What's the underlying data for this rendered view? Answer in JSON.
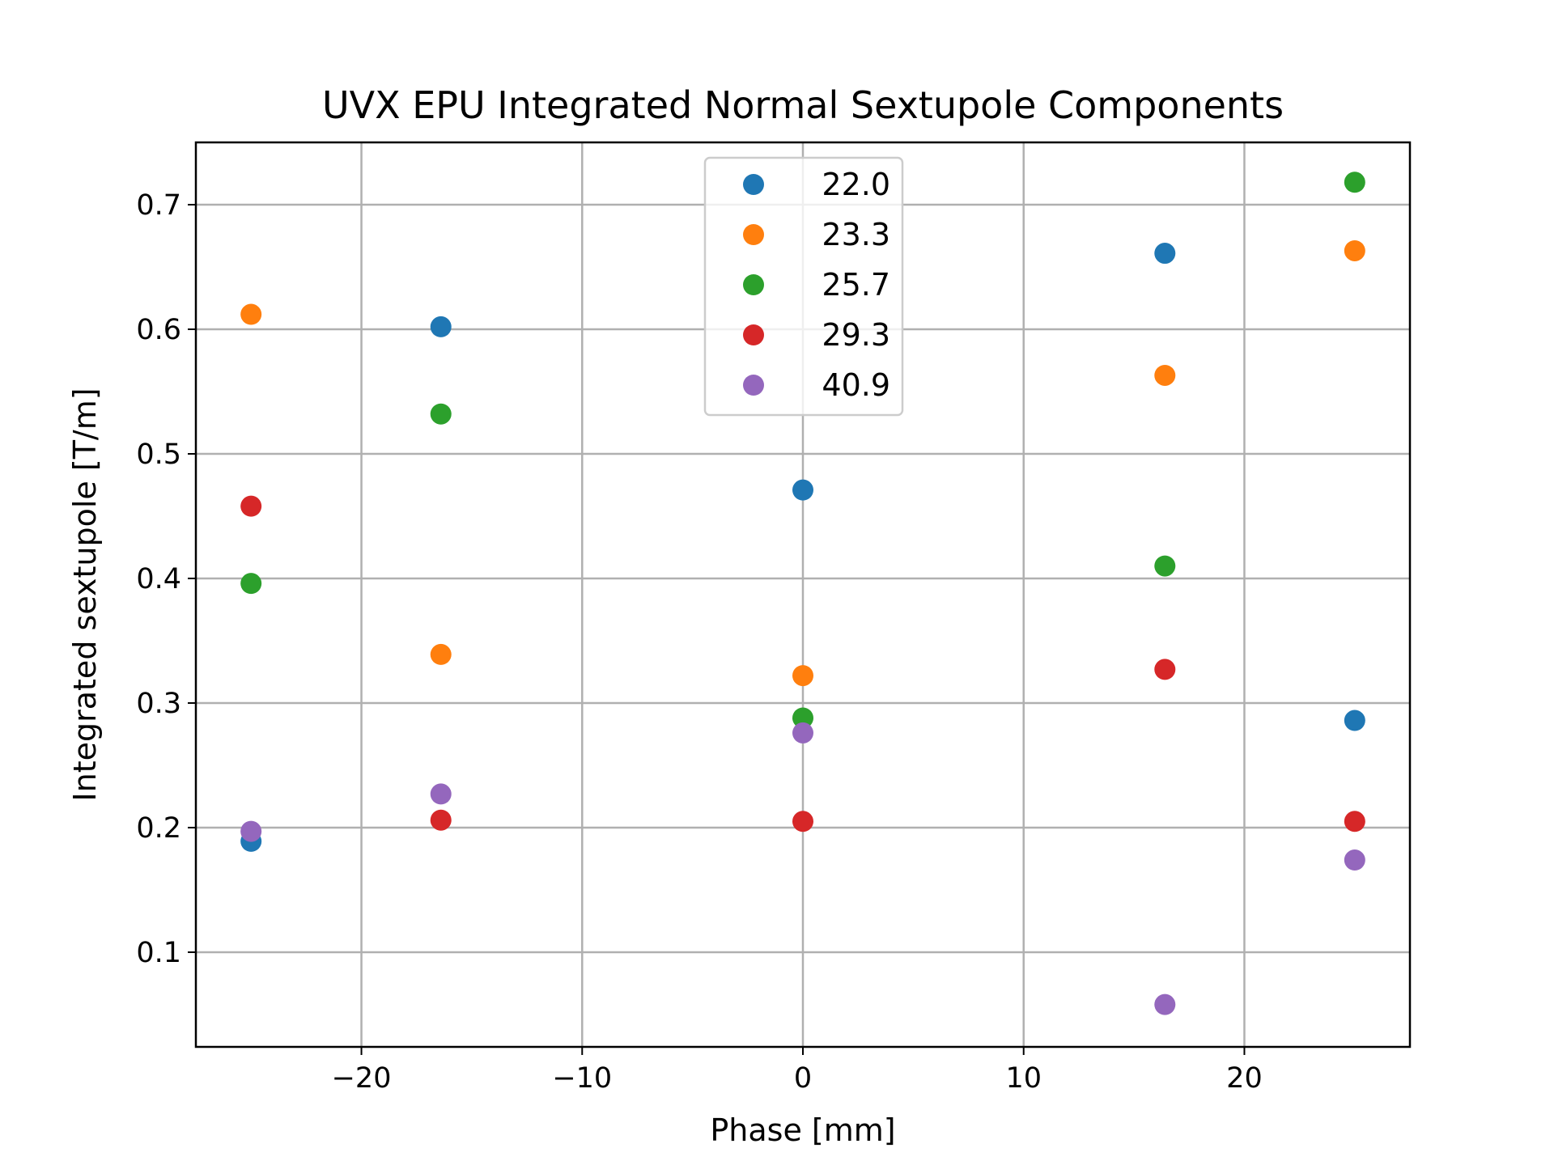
{
  "chart_data": {
    "type": "scatter",
    "title": "UVX EPU Integrated Normal Sextupole Components",
    "xlabel": "Phase [mm]",
    "ylabel": "Integrated sextupole [T/m]",
    "xlim": [
      -27.5,
      27.5
    ],
    "ylim": [
      0.024,
      0.75
    ],
    "xticks": [
      -20,
      -10,
      0,
      10,
      20
    ],
    "xtick_labels": [
      "−20",
      "−10",
      "0",
      "10",
      "20"
    ],
    "yticks": [
      0.1,
      0.2,
      0.3,
      0.4,
      0.5,
      0.6,
      0.7
    ],
    "ytick_labels": [
      "0.1",
      "0.2",
      "0.3",
      "0.4",
      "0.5",
      "0.6",
      "0.7"
    ],
    "grid": true,
    "legend_position": "top-center",
    "x": [
      -25,
      -16.4,
      0,
      16.4,
      25
    ],
    "series": [
      {
        "name": "22.0",
        "color": "#1f77b4",
        "values": [
          0.189,
          0.602,
          0.471,
          0.661,
          0.286
        ]
      },
      {
        "name": "23.3",
        "color": "#ff7f0e",
        "values": [
          0.612,
          0.339,
          0.322,
          0.563,
          0.663
        ]
      },
      {
        "name": "25.7",
        "color": "#2ca02c",
        "values": [
          0.396,
          0.532,
          0.288,
          0.41,
          0.718
        ]
      },
      {
        "name": "29.3",
        "color": "#d62728",
        "values": [
          0.458,
          0.206,
          0.205,
          0.327,
          0.205
        ]
      },
      {
        "name": "40.9",
        "color": "#9467bd",
        "values": [
          0.197,
          0.227,
          0.276,
          0.058,
          0.174
        ]
      }
    ]
  }
}
